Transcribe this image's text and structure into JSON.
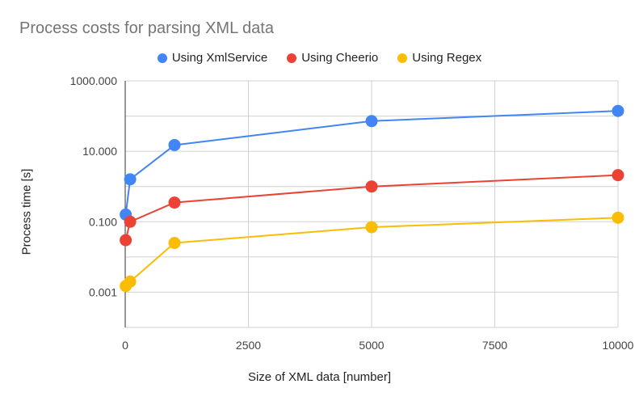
{
  "chart_data": {
    "type": "line",
    "title": "Process costs for parsing XML data",
    "xlabel": "Size of XML data [number]",
    "ylabel": "Process time [s]",
    "y_scale": "log",
    "xlim": [
      0,
      10000
    ],
    "ylim": [
      0.0001,
      1000
    ],
    "grid": true,
    "legend_position": "top",
    "x_ticks": [
      {
        "value": 0,
        "label": "0"
      },
      {
        "value": 2500,
        "label": "2500"
      },
      {
        "value": 5000,
        "label": "5000"
      },
      {
        "value": 7500,
        "label": "7500"
      },
      {
        "value": 10000,
        "label": "10000"
      }
    ],
    "y_ticks": [
      {
        "value": 1000,
        "label": "1000.000"
      },
      {
        "value": 10,
        "label": "10.000"
      },
      {
        "value": 0.1,
        "label": "0.100"
      },
      {
        "value": 0.001,
        "label": "0.001"
      }
    ],
    "series": [
      {
        "name": "Using XmlService",
        "color": "#4285F4",
        "x": [
          10,
          100,
          1000,
          5000,
          10000
        ],
        "y": [
          0.16,
          1.6,
          15,
          72,
          140
        ]
      },
      {
        "name": "Using Cheerio",
        "color": "#EA4335",
        "x": [
          10,
          100,
          1000,
          5000,
          10000
        ],
        "y": [
          0.03,
          0.1,
          0.35,
          1,
          2.1
        ]
      },
      {
        "name": "Using Regex",
        "color": "#FBBC04",
        "x": [
          10,
          100,
          1000,
          5000,
          10000
        ],
        "y": [
          0.0015,
          0.002,
          0.025,
          0.07,
          0.13
        ]
      }
    ]
  }
}
